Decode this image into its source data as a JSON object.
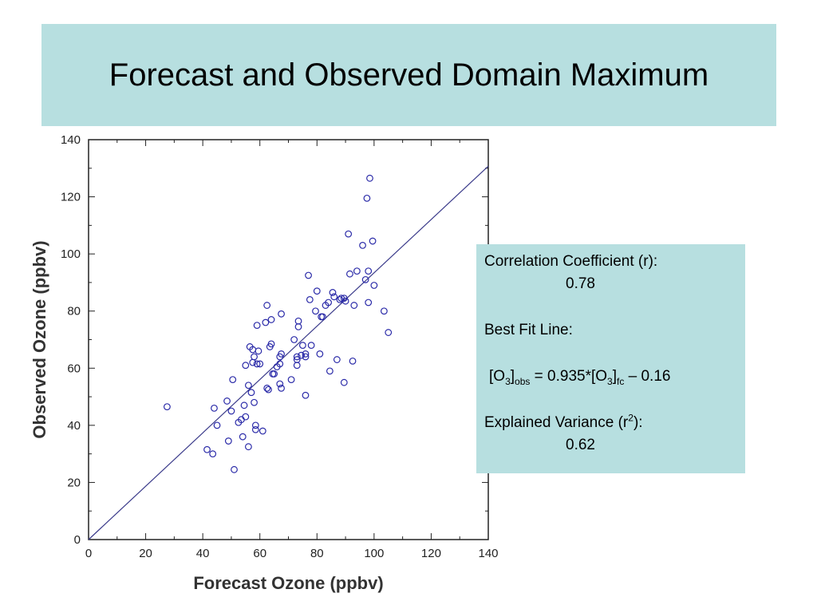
{
  "slide": {
    "title": "Forecast and Observed Domain Maximum"
  },
  "stats": {
    "corr_label": "Correlation Coefficient (r):",
    "corr_value": "0.78",
    "fit_label": "Best Fit Line:",
    "fit_pre": "[O",
    "fit_sub1": "3",
    "fit_mid1": "]",
    "fit_sub2": "obs",
    "fit_mid2": " = 0.935*[O",
    "fit_sub3": "3",
    "fit_mid3": "]",
    "fit_sub4": "fc",
    "fit_post": " – 0.16",
    "var_label": "Explained Variance (r",
    "var_sup": "2",
    "var_label_end": "):",
    "var_value": "0.62"
  },
  "colors": {
    "banner": "#b7dfe0",
    "points": "#2a2aa8",
    "fit_line": "#3a3a8a"
  },
  "chart_data": {
    "type": "scatter",
    "xlabel": "Forecast Ozone (ppbv)",
    "ylabel": "Observed Ozone (ppbv)",
    "xlim": [
      0,
      140
    ],
    "ylim": [
      0,
      140
    ],
    "xticks": [
      0,
      20,
      40,
      60,
      80,
      100,
      120,
      140
    ],
    "yticks": [
      0,
      20,
      40,
      60,
      80,
      100,
      120,
      140
    ],
    "grid": false,
    "fit_line": {
      "slope": 0.935,
      "intercept": -0.16
    },
    "points": [
      [
        27.5,
        46.5
      ],
      [
        41.5,
        31.5
      ],
      [
        43.5,
        30
      ],
      [
        44,
        46
      ],
      [
        45,
        40
      ],
      [
        48.5,
        48.5
      ],
      [
        49,
        34.5
      ],
      [
        50,
        45
      ],
      [
        50.5,
        56
      ],
      [
        51,
        24.5
      ],
      [
        52.5,
        41
      ],
      [
        53.5,
        42
      ],
      [
        54,
        36
      ],
      [
        54.5,
        47
      ],
      [
        55,
        43
      ],
      [
        55,
        61
      ],
      [
        56,
        32.5
      ],
      [
        56,
        54
      ],
      [
        56.5,
        67.5
      ],
      [
        57,
        51.5
      ],
      [
        57.5,
        62
      ],
      [
        57.5,
        66.5
      ],
      [
        58,
        48
      ],
      [
        58,
        64
      ],
      [
        58.5,
        40
      ],
      [
        58.5,
        38.5
      ],
      [
        59,
        75
      ],
      [
        59,
        61.5
      ],
      [
        59.5,
        66
      ],
      [
        60,
        61.5
      ],
      [
        61,
        38
      ],
      [
        62,
        76
      ],
      [
        62.5,
        53
      ],
      [
        62.5,
        82
      ],
      [
        63,
        52.5
      ],
      [
        63.5,
        67.5
      ],
      [
        64,
        68.5
      ],
      [
        64,
        77
      ],
      [
        64.5,
        58
      ],
      [
        65,
        58
      ],
      [
        66,
        60.5
      ],
      [
        67,
        54.5
      ],
      [
        67,
        64
      ],
      [
        67,
        61.5
      ],
      [
        67.5,
        65
      ],
      [
        67.5,
        53
      ],
      [
        67.5,
        79
      ],
      [
        71,
        56
      ],
      [
        72,
        70
      ],
      [
        73,
        63
      ],
      [
        73,
        64
      ],
      [
        73,
        61
      ],
      [
        73.5,
        76.5
      ],
      [
        73.5,
        74.5
      ],
      [
        74.5,
        64.5
      ],
      [
        75,
        68
      ],
      [
        76,
        50.5
      ],
      [
        76,
        65
      ],
      [
        76,
        64
      ],
      [
        77,
        92.5
      ],
      [
        77.5,
        84
      ],
      [
        78,
        68
      ],
      [
        79.5,
        80
      ],
      [
        80,
        87
      ],
      [
        81,
        65
      ],
      [
        81.5,
        78
      ],
      [
        82,
        78
      ],
      [
        83,
        82
      ],
      [
        84,
        83
      ],
      [
        84.5,
        59
      ],
      [
        85.5,
        86.5
      ],
      [
        86,
        85
      ],
      [
        87,
        63
      ],
      [
        88,
        84
      ],
      [
        88.5,
        84.5
      ],
      [
        89.5,
        55
      ],
      [
        89.5,
        84.5
      ],
      [
        90,
        83.5
      ],
      [
        91,
        107
      ],
      [
        91.5,
        93
      ],
      [
        92.5,
        62.5
      ],
      [
        93,
        82
      ],
      [
        94,
        94
      ],
      [
        96,
        103
      ],
      [
        97,
        91
      ],
      [
        97.5,
        119.5
      ],
      [
        98,
        83
      ],
      [
        98,
        94
      ],
      [
        98.5,
        126.5
      ],
      [
        99.5,
        104.5
      ],
      [
        100,
        89
      ],
      [
        103.5,
        80
      ],
      [
        105,
        72.5
      ]
    ]
  }
}
